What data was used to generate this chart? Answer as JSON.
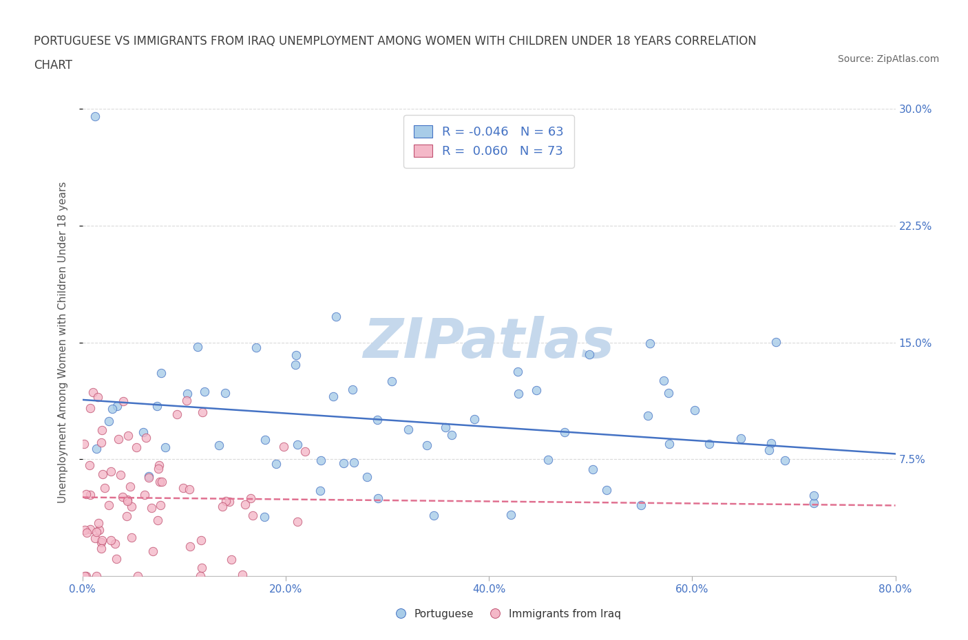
{
  "title_line1": "PORTUGUESE VS IMMIGRANTS FROM IRAQ UNEMPLOYMENT AMONG WOMEN WITH CHILDREN UNDER 18 YEARS CORRELATION",
  "title_line2": "CHART",
  "source": "Source: ZipAtlas.com",
  "ylabel": "Unemployment Among Women with Children Under 18 years",
  "xlim": [
    0.0,
    0.8
  ],
  "ylim": [
    0.0,
    0.3
  ],
  "xtick_vals": [
    0.0,
    0.2,
    0.4,
    0.6,
    0.8
  ],
  "xtick_labels": [
    "0.0%",
    "20.0%",
    "40.0%",
    "60.0%",
    "80.0%"
  ],
  "ytick_vals": [
    0.075,
    0.15,
    0.225,
    0.3
  ],
  "ytick_labels": [
    "7.5%",
    "15.0%",
    "22.5%",
    "30.0%"
  ],
  "legend_label1": "R = -0.046   N = 63",
  "legend_label2": "R =  0.060   N = 73",
  "color_portuguese_fill": "#A8CCE8",
  "color_portuguese_edge": "#4472C4",
  "color_iraq_fill": "#F4B8C8",
  "color_iraq_edge": "#C05070",
  "color_line_portuguese": "#4472C4",
  "color_line_iraq": "#E07090",
  "color_axis_text": "#4472C4",
  "color_grid": "#DADADA",
  "color_title": "#404040",
  "color_source": "#666666",
  "color_ylabel": "#555555",
  "watermark": "ZIPatlas",
  "watermark_color": "#C5D8EC",
  "marker_size": 80,
  "trend_linewidth": 1.8,
  "bottom_legend_portuguese": "Portuguese",
  "bottom_legend_iraq": "Immigrants from Iraq"
}
